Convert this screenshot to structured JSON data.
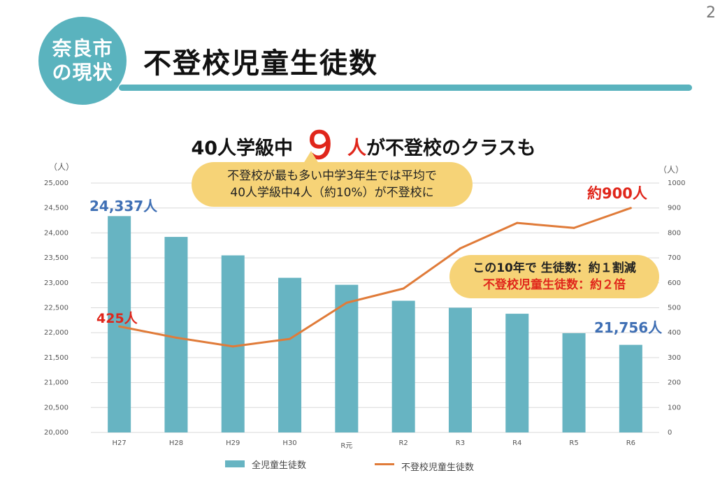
{
  "page_number": "2",
  "badge": {
    "line1": "奈良市",
    "line2": "の現状"
  },
  "title": "不登校児童生徒数",
  "headline": {
    "prefix": "40人学級中",
    "number": "９",
    "unit": "人",
    "suffix": "が不登校のクラスも"
  },
  "callout": {
    "line1": "不登校が最も多い中学3年生では平均で",
    "line2": "40人学級中4人（約10%）が不登校に"
  },
  "summary": {
    "line1": "この10年で  生徒数：約１割減",
    "line2": "不登校児童生徒数：約２倍"
  },
  "labels": {
    "first_total": "24,337人",
    "last_total": "21,756人",
    "first_truant": "425人",
    "last_truant": "約900人"
  },
  "colors": {
    "bar": "#67b4c2",
    "line": "#e07b39",
    "accent": "#5ab3be",
    "highlight": "#f6d377",
    "red": "#e0261b",
    "blue": "#3f6fb4"
  },
  "chart_data": {
    "type": "bar",
    "categories": [
      "H27",
      "H28",
      "H29",
      "H30",
      "R元",
      "R2",
      "R3",
      "R4",
      "R5",
      "R6"
    ],
    "series": [
      {
        "name": "全児童生徒数",
        "type": "bar",
        "axis": "left",
        "values": [
          24337,
          23920,
          23550,
          23100,
          22960,
          22640,
          22500,
          22380,
          21990,
          21756
        ]
      },
      {
        "name": "不登校児童生徒数",
        "type": "line",
        "axis": "right",
        "values": [
          425,
          380,
          345,
          375,
          520,
          577,
          738,
          840,
          820,
          900
        ]
      }
    ],
    "y_left": {
      "unit": "（人）",
      "lim": [
        20000,
        25000
      ],
      "ticks": [
        "20,000",
        "20,500",
        "21,000",
        "21,500",
        "22,000",
        "22,500",
        "23,000",
        "23,500",
        "24,000",
        "24,500",
        "25,000"
      ]
    },
    "y_right": {
      "unit": "（人）",
      "lim": [
        0,
        1000
      ],
      "ticks": [
        "0",
        "100",
        "200",
        "300",
        "400",
        "500",
        "600",
        "700",
        "800",
        "900",
        "1000"
      ]
    },
    "grid": true,
    "legend_position": "bottom"
  }
}
